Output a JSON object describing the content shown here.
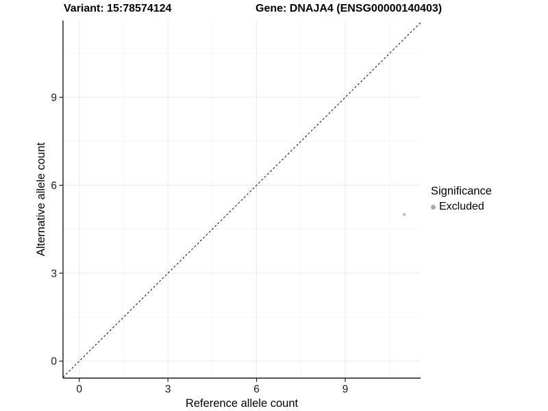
{
  "titles": {
    "variant": "Variant: 15:78574124",
    "gene": "Gene: DNAJA4 (ENSG00000140403)"
  },
  "chart_data": {
    "type": "scatter",
    "title_left": "Variant: 15:78574124",
    "title_right": "Gene: DNAJA4 (ENSG00000140403)",
    "xlabel": "Reference allele count",
    "ylabel": "Alternative allele count",
    "xlim": [
      -0.55,
      11.55
    ],
    "ylim": [
      -0.58,
      11.62
    ],
    "x_ticks": [
      0,
      3,
      6,
      9
    ],
    "y_ticks": [
      0,
      3,
      6,
      9
    ],
    "x_minor_gridlines": [
      1.5,
      4.5,
      7.5,
      10.5
    ],
    "y_minor_gridlines": [
      1.5,
      4.5,
      7.5,
      10.5
    ],
    "grid": "major and minor, very light gray",
    "identity_line": {
      "style": "dashed",
      "slope": 1,
      "intercept": 0
    },
    "series": [
      {
        "name": "Excluded",
        "color": "#bdbdbd",
        "points": [
          {
            "x": 11,
            "y": 5
          }
        ]
      }
    ],
    "legend": {
      "title": "Significance",
      "position": "right",
      "entries": [
        {
          "label": "Excluded",
          "color": "#a9a9a9"
        }
      ]
    },
    "colors": {
      "background": "#ffffff",
      "axis": "#1a1a1a",
      "tick_text": "#1a1a1a",
      "grid_major": "#ebebeb",
      "grid_minor": "#f5f5f5",
      "identity_line": "#000000",
      "point": "#bdbdbd"
    }
  }
}
